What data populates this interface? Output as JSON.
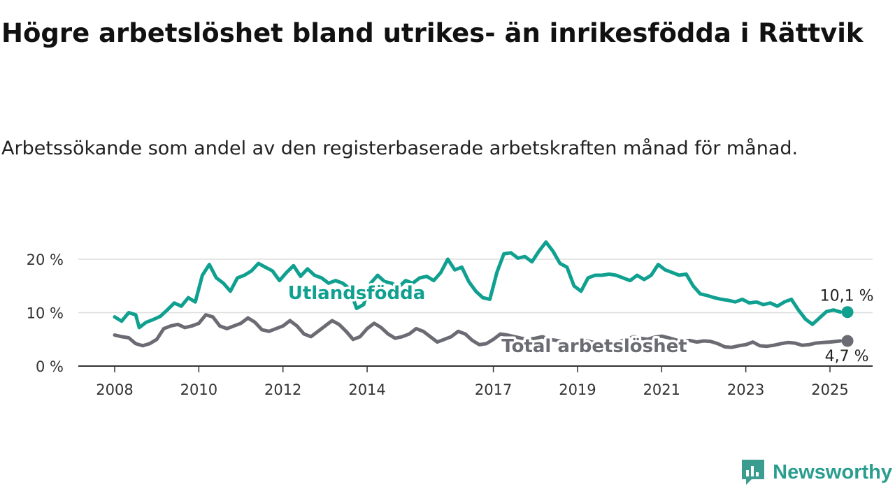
{
  "title": "Högre arbetslöshet bland utrikes- än inrikesfödda i Rättvik",
  "subtitle": "Arbetssökande som andel av den registerbaserade arbetskraften månad för månad.",
  "brand": {
    "name": "Newsworthy",
    "icon": "newsworthy-logo-icon",
    "color": "#3a9d90"
  },
  "chart_data": {
    "type": "line",
    "title": "Högre arbetslöshet bland utrikes- än inrikesfödda i Rättvik",
    "xlabel": "",
    "ylabel": "",
    "ylim": [
      0,
      25
    ],
    "grid": true,
    "legend": "inline labels",
    "x_ticks": [
      "2008",
      "2010",
      "2012",
      "2014",
      "2017",
      "2019",
      "2021",
      "2023",
      "2025"
    ],
    "y_ticks": [
      {
        "value": 0,
        "label": "0 %"
      },
      {
        "value": 10,
        "label": "10 %"
      },
      {
        "value": 20,
        "label": "20 %"
      }
    ],
    "series": [
      {
        "name": "Utlandsfödda",
        "color": "#10a090",
        "end_label": "10,1 %",
        "points": [
          [
            "2008-01",
            9.2
          ],
          [
            "2008-03",
            8.4
          ],
          [
            "2008-05",
            10.0
          ],
          [
            "2008-07",
            9.6
          ],
          [
            "2008-08",
            7.2
          ],
          [
            "2008-10",
            8.2
          ],
          [
            "2008-12",
            8.7
          ],
          [
            "2009-02",
            9.3
          ],
          [
            "2009-04",
            10.5
          ],
          [
            "2009-06",
            11.8
          ],
          [
            "2009-08",
            11.2
          ],
          [
            "2009-10",
            12.8
          ],
          [
            "2009-12",
            12.0
          ],
          [
            "2010-02",
            17.0
          ],
          [
            "2010-04",
            19.0
          ],
          [
            "2010-06",
            16.5
          ],
          [
            "2010-08",
            15.5
          ],
          [
            "2010-10",
            14.0
          ],
          [
            "2010-12",
            16.5
          ],
          [
            "2011-02",
            17.0
          ],
          [
            "2011-04",
            17.8
          ],
          [
            "2011-06",
            19.2
          ],
          [
            "2011-08",
            18.5
          ],
          [
            "2011-10",
            17.8
          ],
          [
            "2011-12",
            16.0
          ],
          [
            "2012-02",
            17.5
          ],
          [
            "2012-04",
            18.8
          ],
          [
            "2012-06",
            16.8
          ],
          [
            "2012-08",
            18.2
          ],
          [
            "2012-10",
            17.0
          ],
          [
            "2012-12",
            16.5
          ],
          [
            "2013-02",
            15.5
          ],
          [
            "2013-04",
            16.0
          ],
          [
            "2013-06",
            15.5
          ],
          [
            "2013-08",
            14.5
          ],
          [
            "2013-10",
            10.8
          ],
          [
            "2013-12",
            11.5
          ],
          [
            "2014-02",
            15.5
          ],
          [
            "2014-04",
            17.0
          ],
          [
            "2014-06",
            15.8
          ],
          [
            "2014-08",
            15.5
          ],
          [
            "2014-10",
            14.8
          ],
          [
            "2014-12",
            16.0
          ],
          [
            "2015-02",
            15.5
          ],
          [
            "2015-04",
            16.5
          ],
          [
            "2015-06",
            16.8
          ],
          [
            "2015-08",
            16.0
          ],
          [
            "2015-10",
            17.5
          ],
          [
            "2015-12",
            20.0
          ],
          [
            "2016-02",
            18.0
          ],
          [
            "2016-04",
            18.5
          ],
          [
            "2016-06",
            15.8
          ],
          [
            "2016-08",
            14.0
          ],
          [
            "2016-10",
            12.8
          ],
          [
            "2016-12",
            12.5
          ],
          [
            "2017-02",
            17.5
          ],
          [
            "2017-04",
            21.0
          ],
          [
            "2017-06",
            21.2
          ],
          [
            "2017-08",
            20.2
          ],
          [
            "2017-10",
            20.5
          ],
          [
            "2017-12",
            19.5
          ],
          [
            "2018-02",
            21.5
          ],
          [
            "2018-04",
            23.2
          ],
          [
            "2018-06",
            21.5
          ],
          [
            "2018-08",
            19.2
          ],
          [
            "2018-10",
            18.5
          ],
          [
            "2018-12",
            15.0
          ],
          [
            "2019-02",
            14.0
          ],
          [
            "2019-04",
            16.5
          ],
          [
            "2019-06",
            17.0
          ],
          [
            "2019-08",
            17.0
          ],
          [
            "2019-10",
            17.2
          ],
          [
            "2019-12",
            17.0
          ],
          [
            "2020-02",
            16.5
          ],
          [
            "2020-04",
            16.0
          ],
          [
            "2020-06",
            17.0
          ],
          [
            "2020-08",
            16.2
          ],
          [
            "2020-10",
            17.0
          ],
          [
            "2020-12",
            19.0
          ],
          [
            "2021-02",
            18.0
          ],
          [
            "2021-04",
            17.5
          ],
          [
            "2021-06",
            17.0
          ],
          [
            "2021-08",
            17.2
          ],
          [
            "2021-10",
            15.0
          ],
          [
            "2021-12",
            13.5
          ],
          [
            "2022-02",
            13.2
          ],
          [
            "2022-04",
            12.8
          ],
          [
            "2022-06",
            12.5
          ],
          [
            "2022-08",
            12.3
          ],
          [
            "2022-10",
            12.0
          ],
          [
            "2022-12",
            12.5
          ],
          [
            "2023-02",
            11.8
          ],
          [
            "2023-04",
            12.0
          ],
          [
            "2023-06",
            11.5
          ],
          [
            "2023-08",
            11.8
          ],
          [
            "2023-10",
            11.2
          ],
          [
            "2023-12",
            12.0
          ],
          [
            "2024-02",
            12.5
          ],
          [
            "2024-04",
            10.5
          ],
          [
            "2024-06",
            8.8
          ],
          [
            "2024-08",
            7.8
          ],
          [
            "2024-10",
            9.0
          ],
          [
            "2024-12",
            10.2
          ],
          [
            "2025-02",
            10.5
          ],
          [
            "2025-04",
            10.1
          ]
        ]
      },
      {
        "name": "Total arbetslöshet",
        "color": "#6b6b73",
        "end_label": "4,7 %",
        "points": [
          [
            "2008-01",
            5.8
          ],
          [
            "2008-03",
            5.5
          ],
          [
            "2008-05",
            5.3
          ],
          [
            "2008-07",
            4.2
          ],
          [
            "2008-09",
            3.8
          ],
          [
            "2008-11",
            4.2
          ],
          [
            "2009-01",
            5.0
          ],
          [
            "2009-03",
            7.0
          ],
          [
            "2009-05",
            7.5
          ],
          [
            "2009-07",
            7.8
          ],
          [
            "2009-09",
            7.2
          ],
          [
            "2009-11",
            7.5
          ],
          [
            "2010-01",
            8.0
          ],
          [
            "2010-03",
            9.6
          ],
          [
            "2010-05",
            9.2
          ],
          [
            "2010-07",
            7.5
          ],
          [
            "2010-09",
            7.0
          ],
          [
            "2010-11",
            7.5
          ],
          [
            "2011-01",
            8.0
          ],
          [
            "2011-03",
            9.0
          ],
          [
            "2011-05",
            8.2
          ],
          [
            "2011-07",
            6.8
          ],
          [
            "2011-09",
            6.5
          ],
          [
            "2011-11",
            7.0
          ],
          [
            "2012-01",
            7.5
          ],
          [
            "2012-03",
            8.5
          ],
          [
            "2012-05",
            7.5
          ],
          [
            "2012-07",
            6.0
          ],
          [
            "2012-09",
            5.5
          ],
          [
            "2012-11",
            6.5
          ],
          [
            "2013-01",
            7.5
          ],
          [
            "2013-03",
            8.5
          ],
          [
            "2013-05",
            7.8
          ],
          [
            "2013-07",
            6.5
          ],
          [
            "2013-09",
            5.0
          ],
          [
            "2013-11",
            5.5
          ],
          [
            "2014-01",
            7.0
          ],
          [
            "2014-03",
            8.0
          ],
          [
            "2014-05",
            7.2
          ],
          [
            "2014-07",
            6.0
          ],
          [
            "2014-09",
            5.2
          ],
          [
            "2014-11",
            5.5
          ],
          [
            "2015-01",
            6.0
          ],
          [
            "2015-03",
            7.0
          ],
          [
            "2015-05",
            6.5
          ],
          [
            "2015-07",
            5.5
          ],
          [
            "2015-09",
            4.5
          ],
          [
            "2015-11",
            5.0
          ],
          [
            "2016-01",
            5.5
          ],
          [
            "2016-03",
            6.5
          ],
          [
            "2016-05",
            6.0
          ],
          [
            "2016-07",
            4.8
          ],
          [
            "2016-09",
            4.0
          ],
          [
            "2016-11",
            4.2
          ],
          [
            "2017-01",
            5.0
          ],
          [
            "2017-03",
            6.0
          ],
          [
            "2017-05",
            5.8
          ],
          [
            "2017-07",
            5.5
          ],
          [
            "2017-09",
            5.2
          ],
          [
            "2017-11",
            5.0
          ],
          [
            "2018-01",
            5.2
          ],
          [
            "2018-03",
            5.5
          ],
          [
            "2018-05",
            5.0
          ],
          [
            "2018-07",
            4.8
          ],
          [
            "2018-09",
            4.5
          ],
          [
            "2018-11",
            4.3
          ],
          [
            "2019-01",
            4.5
          ],
          [
            "2019-03",
            4.8
          ],
          [
            "2019-05",
            4.5
          ],
          [
            "2019-07",
            4.3
          ],
          [
            "2019-09",
            4.2
          ],
          [
            "2019-11",
            4.4
          ],
          [
            "2020-01",
            4.6
          ],
          [
            "2020-03",
            5.0
          ],
          [
            "2020-05",
            5.5
          ],
          [
            "2020-07",
            5.2
          ],
          [
            "2020-09",
            5.0
          ],
          [
            "2020-11",
            5.4
          ],
          [
            "2021-01",
            5.6
          ],
          [
            "2021-03",
            5.3
          ],
          [
            "2021-05",
            4.9
          ],
          [
            "2021-07",
            4.6
          ],
          [
            "2021-09",
            4.8
          ],
          [
            "2021-11",
            4.5
          ],
          [
            "2022-01",
            4.7
          ],
          [
            "2022-03",
            4.6
          ],
          [
            "2022-05",
            4.2
          ],
          [
            "2022-07",
            3.6
          ],
          [
            "2022-09",
            3.5
          ],
          [
            "2022-11",
            3.8
          ],
          [
            "2023-01",
            4.0
          ],
          [
            "2023-03",
            4.5
          ],
          [
            "2023-05",
            3.8
          ],
          [
            "2023-07",
            3.7
          ],
          [
            "2023-09",
            3.9
          ],
          [
            "2023-11",
            4.2
          ],
          [
            "2024-01",
            4.4
          ],
          [
            "2024-03",
            4.3
          ],
          [
            "2024-05",
            3.9
          ],
          [
            "2024-07",
            4.0
          ],
          [
            "2024-09",
            4.3
          ],
          [
            "2024-11",
            4.4
          ],
          [
            "2025-01",
            4.5
          ],
          [
            "2025-04",
            4.7
          ]
        ]
      }
    ]
  }
}
